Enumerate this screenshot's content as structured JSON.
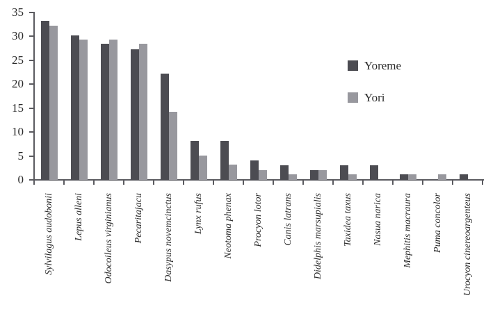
{
  "chart_data": {
    "type": "bar",
    "title": "",
    "xlabel": "",
    "ylabel": "",
    "ylim": [
      0,
      35
    ],
    "yticks": [
      0,
      5,
      10,
      15,
      20,
      25,
      30,
      35
    ],
    "grid": false,
    "legend_position": "upper-right",
    "categories": [
      "Sylvilagus audobonii",
      "Lepus alleni",
      "Odocoileus virginianus",
      "Pecaritajacu",
      "Dasypus novemcinctus",
      "Lynx rufus",
      "Neotoma phenax",
      "Procyon lotor",
      "Canis latrans",
      "Didelphis marsupialis",
      "Taxidea taxus",
      "Nasua narica",
      "Mephitis macraura",
      "Puma concolor",
      "Urocyon cinereoargenteus"
    ],
    "series": [
      {
        "name": "Yoreme",
        "color": "#4c4c52",
        "values": [
          33.3,
          30.2,
          28.4,
          27.3,
          22.2,
          8.2,
          8.2,
          4.1,
          3.1,
          2.1,
          3.1,
          3.1,
          1.1,
          0,
          1.1
        ]
      },
      {
        "name": "Yori",
        "color": "#98989e",
        "values": [
          32.3,
          29.3,
          29.3,
          28.4,
          14.2,
          5.1,
          3.2,
          2.1,
          1.1,
          2.1,
          1.1,
          0,
          1.1,
          1.1,
          0
        ]
      }
    ],
    "axis_color": "#5a5a5f",
    "text_color": "#2b2b2b",
    "x_tick_label_style": "italic, rotated 90 degrees"
  }
}
